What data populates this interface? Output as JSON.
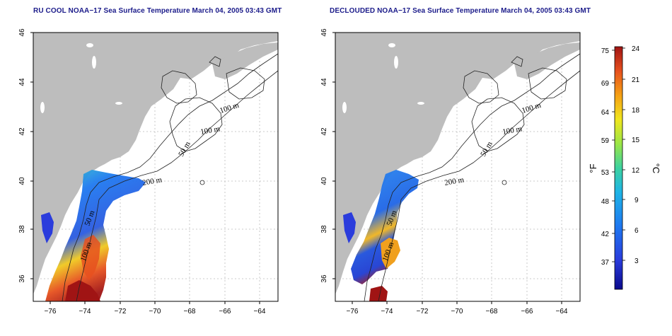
{
  "panels": [
    {
      "title": "RU COOL NOAA−17 Sea Surface Temperature March 04, 2005 03:43 GMT",
      "contour_labels": [
        "100 m",
        "100 m",
        "50 m",
        "200 m",
        "50 m",
        "100 m"
      ]
    },
    {
      "title": "DECLOUDED NOAA−17 Sea Surface Temperature March 04, 2005 03:43 GMT",
      "contour_labels": [
        "100 m",
        "100 m",
        "50 m",
        "200 m",
        "50 m",
        "100 m"
      ]
    }
  ],
  "axes": {
    "lon_ticks": [
      "−76",
      "−74",
      "−72",
      "−70",
      "−68",
      "−66",
      "−64"
    ],
    "lat_ticks": [
      "46",
      "44",
      "42",
      "40",
      "38",
      "36"
    ]
  },
  "colorbar": {
    "fahrenheit_ticks": [
      "75",
      "69",
      "64",
      "59",
      "53",
      "48",
      "42",
      "37"
    ],
    "celsius_ticks": [
      "24",
      "21",
      "18",
      "15",
      "12",
      "9",
      "6",
      "3"
    ],
    "fahrenheit_unit": "°F",
    "celsius_unit": "°C",
    "colors": [
      "#0a0a8c",
      "#2a3cdc",
      "#1e78f0",
      "#1eb4e6",
      "#3cd2a0",
      "#9be646",
      "#f0e61e",
      "#f5a014",
      "#e6501e",
      "#a01414"
    ]
  },
  "colors": {
    "land": "#bdbdbd",
    "ocean": "#ffffff",
    "grid": "#bbbbbb",
    "title": "#1b1b8a"
  }
}
